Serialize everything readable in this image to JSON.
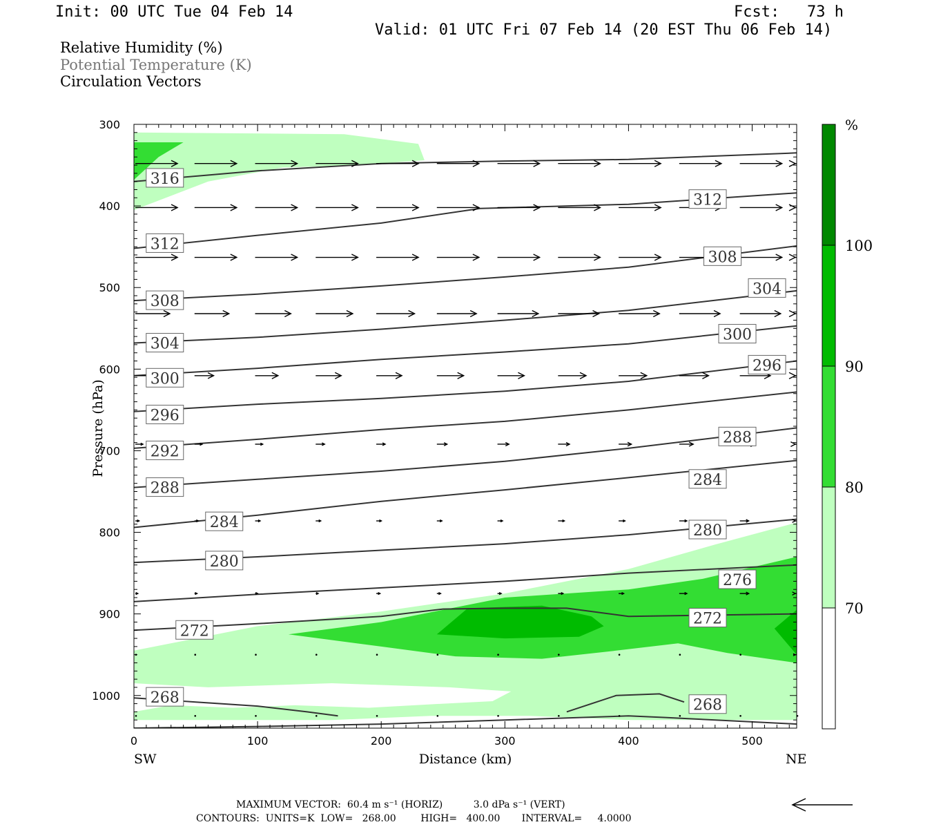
{
  "header": {
    "init": "Init: 00 UTC Tue 04 Feb 14",
    "fcst": "Fcst:   73 h",
    "valid": "Valid: 01 UTC Fri 07 Feb 14 (20 EST Thu 06 Feb 14)"
  },
  "legend": {
    "rh": "Relative Humidity (%)",
    "theta": "Potential Temperature (K)",
    "vectors": "Circulation Vectors"
  },
  "colors": {
    "rh_70_80": "#bfffbf",
    "rh_80_90": "#33dd33",
    "rh_90_100": "#00bb00",
    "rh_100": "#008800",
    "contour": "#333333",
    "vector": "#000000"
  },
  "chart_data": {
    "type": "cross-section",
    "xlabel": "Distance (km)",
    "ylabel": "Pressure (hPa)",
    "xlim": [
      0,
      536
    ],
    "ylim": [
      300,
      1040
    ],
    "y_reversed": true,
    "x_ticks": [
      "0",
      "100",
      "200",
      "300",
      "400",
      "500"
    ],
    "x_tick_values": [
      0,
      100,
      200,
      300,
      400,
      500
    ],
    "y_ticks": [
      "300",
      "400",
      "500",
      "600",
      "700",
      "800",
      "900",
      "1000"
    ],
    "y_tick_values": [
      300,
      400,
      500,
      600,
      700,
      800,
      900,
      1000
    ],
    "endpoint_left": "SW",
    "endpoint_right": "NE",
    "colorbar": {
      "unit": "%",
      "levels": [
        "70",
        "80",
        "90",
        "100"
      ],
      "level_values": [
        70,
        80,
        90,
        100
      ]
    },
    "rh_regions": [
      {
        "level": "70-80",
        "points": [
          [
            0,
            310
          ],
          [
            170,
            312
          ],
          [
            230,
            324
          ],
          [
            235,
            344
          ],
          [
            180,
            350
          ],
          [
            120,
            353
          ],
          [
            60,
            370
          ],
          [
            0,
            405
          ]
        ]
      },
      {
        "level": "70-80",
        "points": [
          [
            0,
            945
          ],
          [
            100,
            915
          ],
          [
            200,
            897
          ],
          [
            300,
            875
          ],
          [
            400,
            845
          ],
          [
            470,
            815
          ],
          [
            536,
            788
          ],
          [
            536,
            1030
          ],
          [
            400,
            1030
          ],
          [
            320,
            1025
          ],
          [
            240,
            1025
          ],
          [
            160,
            1030
          ],
          [
            0,
            1030
          ],
          [
            0,
            1020
          ],
          [
            30,
            1012
          ],
          [
            80,
            1015
          ],
          [
            130,
            1012
          ],
          [
            190,
            1015
          ],
          [
            250,
            1010
          ],
          [
            290,
            1007
          ],
          [
            305,
            995
          ],
          [
            255,
            990
          ],
          [
            160,
            985
          ],
          [
            60,
            990
          ],
          [
            0,
            985
          ]
        ]
      },
      {
        "level": "80-90",
        "points": [
          [
            0,
            322
          ],
          [
            40,
            322
          ],
          [
            20,
            340
          ],
          [
            0,
            368
          ]
        ]
      },
      {
        "level": "80-90",
        "points": [
          [
            125,
            925
          ],
          [
            200,
            910
          ],
          [
            300,
            880
          ],
          [
            400,
            870
          ],
          [
            460,
            857
          ],
          [
            536,
            830
          ],
          [
            536,
            960
          ],
          [
            480,
            948
          ],
          [
            440,
            936
          ],
          [
            390,
            945
          ],
          [
            330,
            955
          ],
          [
            260,
            952
          ],
          [
            200,
            940
          ]
        ]
      },
      {
        "level": "90-100",
        "points": [
          [
            245,
            925
          ],
          [
            270,
            893
          ],
          [
            330,
            890
          ],
          [
            370,
            903
          ],
          [
            380,
            915
          ],
          [
            360,
            928
          ],
          [
            300,
            930
          ]
        ]
      },
      {
        "level": "90-100",
        "points": [
          [
            518,
            918
          ],
          [
            536,
            895
          ],
          [
            536,
            950
          ]
        ]
      }
    ],
    "theta_contours": [
      {
        "value": 316,
        "points": [
          [
            0,
            370
          ],
          [
            100,
            357
          ],
          [
            200,
            348
          ],
          [
            300,
            345
          ],
          [
            400,
            343
          ],
          [
            536,
            335
          ]
        ]
      },
      {
        "value": 312,
        "points": [
          [
            0,
            452
          ],
          [
            100,
            436
          ],
          [
            200,
            421
          ],
          [
            280,
            403
          ],
          [
            400,
            398
          ],
          [
            536,
            384
          ]
        ]
      },
      {
        "value": 308,
        "points": [
          [
            0,
            516
          ],
          [
            100,
            508
          ],
          [
            200,
            498
          ],
          [
            300,
            487
          ],
          [
            400,
            475
          ],
          [
            536,
            449
          ]
        ]
      },
      {
        "value": 304,
        "points": [
          [
            0,
            568
          ],
          [
            100,
            561
          ],
          [
            200,
            551
          ],
          [
            300,
            540
          ],
          [
            400,
            528
          ],
          [
            536,
            504
          ]
        ]
      },
      {
        "value": 300,
        "points": [
          [
            0,
            608
          ],
          [
            100,
            599
          ],
          [
            200,
            588
          ],
          [
            300,
            579
          ],
          [
            400,
            569
          ],
          [
            536,
            547
          ]
        ]
      },
      {
        "value": 296,
        "points": [
          [
            0,
            652
          ],
          [
            100,
            643
          ],
          [
            200,
            636
          ],
          [
            300,
            627
          ],
          [
            400,
            615
          ],
          [
            536,
            590
          ]
        ]
      },
      {
        "value": 292,
        "points": [
          [
            0,
            697
          ],
          [
            100,
            686
          ],
          [
            200,
            674
          ],
          [
            300,
            664
          ],
          [
            400,
            650
          ],
          [
            536,
            628
          ]
        ]
      },
      {
        "value": 288,
        "points": [
          [
            0,
            745
          ],
          [
            100,
            735
          ],
          [
            200,
            725
          ],
          [
            300,
            713
          ],
          [
            400,
            697
          ],
          [
            536,
            672
          ]
        ]
      },
      {
        "value": 284,
        "points": [
          [
            0,
            794
          ],
          [
            100,
            779
          ],
          [
            200,
            762
          ],
          [
            300,
            748
          ],
          [
            400,
            733
          ],
          [
            536,
            712
          ]
        ]
      },
      {
        "value": 280,
        "points": [
          [
            0,
            837
          ],
          [
            100,
            830
          ],
          [
            200,
            822
          ],
          [
            300,
            814
          ],
          [
            400,
            803
          ],
          [
            536,
            784
          ]
        ]
      },
      {
        "value": 276,
        "points": [
          [
            0,
            885
          ],
          [
            100,
            876
          ],
          [
            200,
            868
          ],
          [
            300,
            860
          ],
          [
            400,
            850
          ],
          [
            536,
            840
          ]
        ]
      },
      {
        "value": 272,
        "points": [
          [
            0,
            920
          ],
          [
            100,
            912
          ],
          [
            200,
            903
          ],
          [
            250,
            894
          ],
          [
            300,
            893
          ],
          [
            350,
            893
          ],
          [
            400,
            903
          ],
          [
            536,
            900
          ]
        ]
      },
      {
        "value": 268,
        "points": [
          [
            0,
            1003
          ],
          [
            50,
            1008
          ],
          [
            100,
            1013
          ],
          [
            140,
            1020
          ],
          [
            165,
            1025
          ]
        ]
      },
      {
        "value": 268,
        "points": [
          [
            350,
            1020
          ],
          [
            390,
            1000
          ],
          [
            425,
            998
          ],
          [
            445,
            1008
          ]
        ]
      },
      {
        "value": 268,
        "points": [
          [
            0,
            1040
          ],
          [
            100,
            1038
          ],
          [
            200,
            1035
          ],
          [
            300,
            1030
          ],
          [
            400,
            1025
          ],
          [
            430,
            1027
          ],
          [
            536,
            1035
          ]
        ]
      }
    ],
    "theta_labels": [
      {
        "value": "316",
        "x": 25,
        "p": 366
      },
      {
        "value": "312",
        "x": 25,
        "p": 446
      },
      {
        "value": "312",
        "x": 464,
        "p": 392
      },
      {
        "value": "308",
        "x": 25,
        "p": 516
      },
      {
        "value": "308",
        "x": 476,
        "p": 462
      },
      {
        "value": "304",
        "x": 25,
        "p": 568
      },
      {
        "value": "304",
        "x": 512,
        "p": 501
      },
      {
        "value": "300",
        "x": 25,
        "p": 611
      },
      {
        "value": "300",
        "x": 488,
        "p": 557
      },
      {
        "value": "296",
        "x": 25,
        "p": 656
      },
      {
        "value": "296",
        "x": 512,
        "p": 595
      },
      {
        "value": "292",
        "x": 25,
        "p": 700
      },
      {
        "value": "288",
        "x": 25,
        "p": 745
      },
      {
        "value": "288",
        "x": 488,
        "p": 683
      },
      {
        "value": "284",
        "x": 73,
        "p": 787
      },
      {
        "value": "284",
        "x": 464,
        "p": 735
      },
      {
        "value": "280",
        "x": 73,
        "p": 835
      },
      {
        "value": "280",
        "x": 464,
        "p": 797
      },
      {
        "value": "276",
        "x": 488,
        "p": 858
      },
      {
        "value": "272",
        "x": 49,
        "p": 920
      },
      {
        "value": "272",
        "x": 464,
        "p": 905
      },
      {
        "value": "268",
        "x": 25,
        "p": 1002
      },
      {
        "value": "268",
        "x": 464,
        "p": 1011
      }
    ],
    "vector_rows": [
      {
        "p": 348,
        "u": [
          33,
          33,
          33,
          33,
          33,
          33,
          33,
          33,
          33,
          33,
          33,
          33
        ]
      },
      {
        "p": 402,
        "u": [
          33,
          33,
          33,
          33,
          33,
          33,
          33,
          33,
          33,
          33,
          33,
          33
        ]
      },
      {
        "p": 463,
        "u": [
          33,
          33,
          33,
          33,
          33,
          33,
          33,
          33,
          33,
          33,
          33,
          33
        ]
      },
      {
        "p": 532,
        "u": [
          27,
          27,
          28,
          29,
          30,
          31,
          32,
          32,
          32,
          32,
          32,
          30
        ]
      },
      {
        "p": 608,
        "u": [
          13,
          15,
          18,
          20,
          20,
          21,
          21,
          22,
          22,
          23,
          24,
          25
        ]
      },
      {
        "p": 692,
        "u": [
          6,
          6,
          6,
          7,
          7,
          8,
          9,
          9,
          10,
          11,
          12,
          12
        ]
      },
      {
        "p": 786,
        "u": [
          3,
          3,
          4,
          4,
          4,
          4,
          4,
          5,
          5,
          6,
          7,
          8
        ]
      },
      {
        "p": 875,
        "u": [
          2,
          2,
          2,
          2,
          3,
          3,
          3,
          4,
          4,
          6,
          7,
          8
        ]
      },
      {
        "p": 950,
        "u": [
          0,
          1,
          1,
          1,
          1,
          1,
          1,
          1,
          1,
          1,
          1,
          2
        ]
      },
      {
        "p": 1025,
        "u": [
          0,
          0,
          0,
          0,
          0,
          0,
          0,
          0,
          0,
          0,
          0,
          0
        ]
      }
    ],
    "vector_x": [
      0,
      49,
      98,
      147,
      196,
      245,
      294,
      343,
      392,
      441,
      490,
      536
    ]
  },
  "footer": {
    "max_vector": "MAXIMUM VECTOR:  60.4 m s⁻¹ (HORIZ)          3.0 dPa s⁻¹ (VERT)",
    "contours": "CONTOURS:  UNITS=K  LOW=   268.00        HIGH=   400.00       INTERVAL=     4.0000"
  }
}
